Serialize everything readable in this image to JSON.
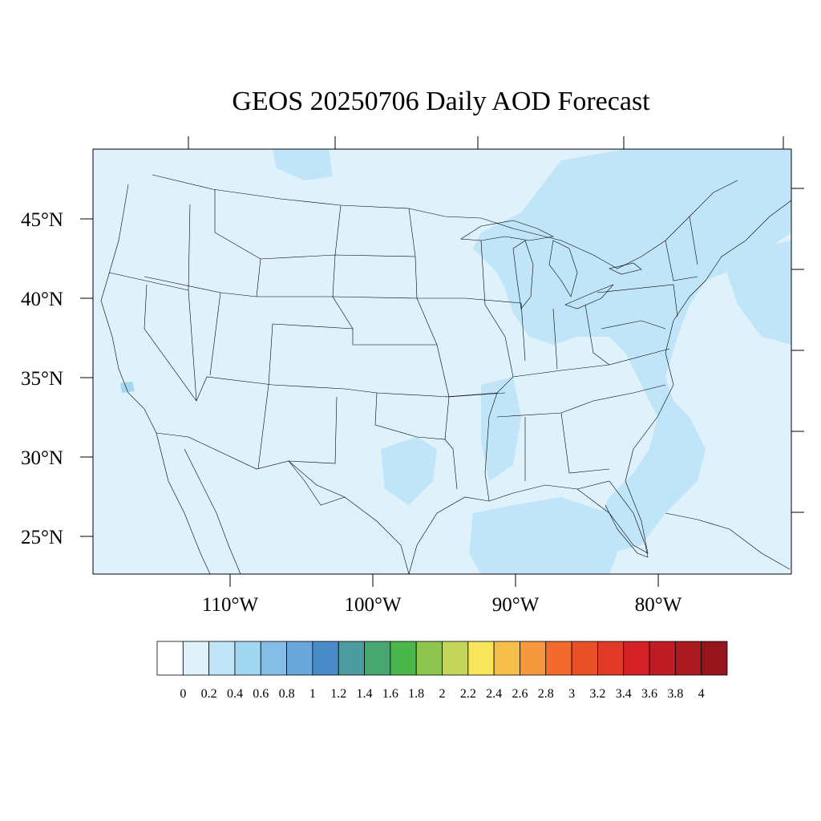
{
  "title": "GEOS 20250706 Daily AOD Forecast",
  "map": {
    "background_color": "#dff1fb",
    "plume_color": "#c0e5f8",
    "longitude_labels": [
      "110°W",
      "100°W",
      "90°W",
      "80°W"
    ],
    "latitude_labels": [
      "45°N",
      "40°N",
      "35°N",
      "30°N",
      "25°N"
    ]
  },
  "colorbar": {
    "labels": [
      "0",
      "0.2",
      "0.4",
      "0.6",
      "0.8",
      "1",
      "1.2",
      "1.4",
      "1.6",
      "1.8",
      "2",
      "2.2",
      "2.4",
      "2.6",
      "2.8",
      "3",
      "3.2",
      "3.4",
      "3.6",
      "3.8",
      "4"
    ],
    "colors": [
      "#ffffff",
      "#dff1fb",
      "#bfe5f7",
      "#a2d7f2",
      "#86bde4",
      "#6aa7da",
      "#4a8cc9",
      "#4c9ba0",
      "#46a870",
      "#4bb64a",
      "#8dc54f",
      "#c3d55a",
      "#f7e55b",
      "#f6be4b",
      "#f5983e",
      "#f26a2c",
      "#ea5028",
      "#e03a26",
      "#d42027",
      "#c01c24",
      "#a91b21",
      "#94161c"
    ]
  }
}
